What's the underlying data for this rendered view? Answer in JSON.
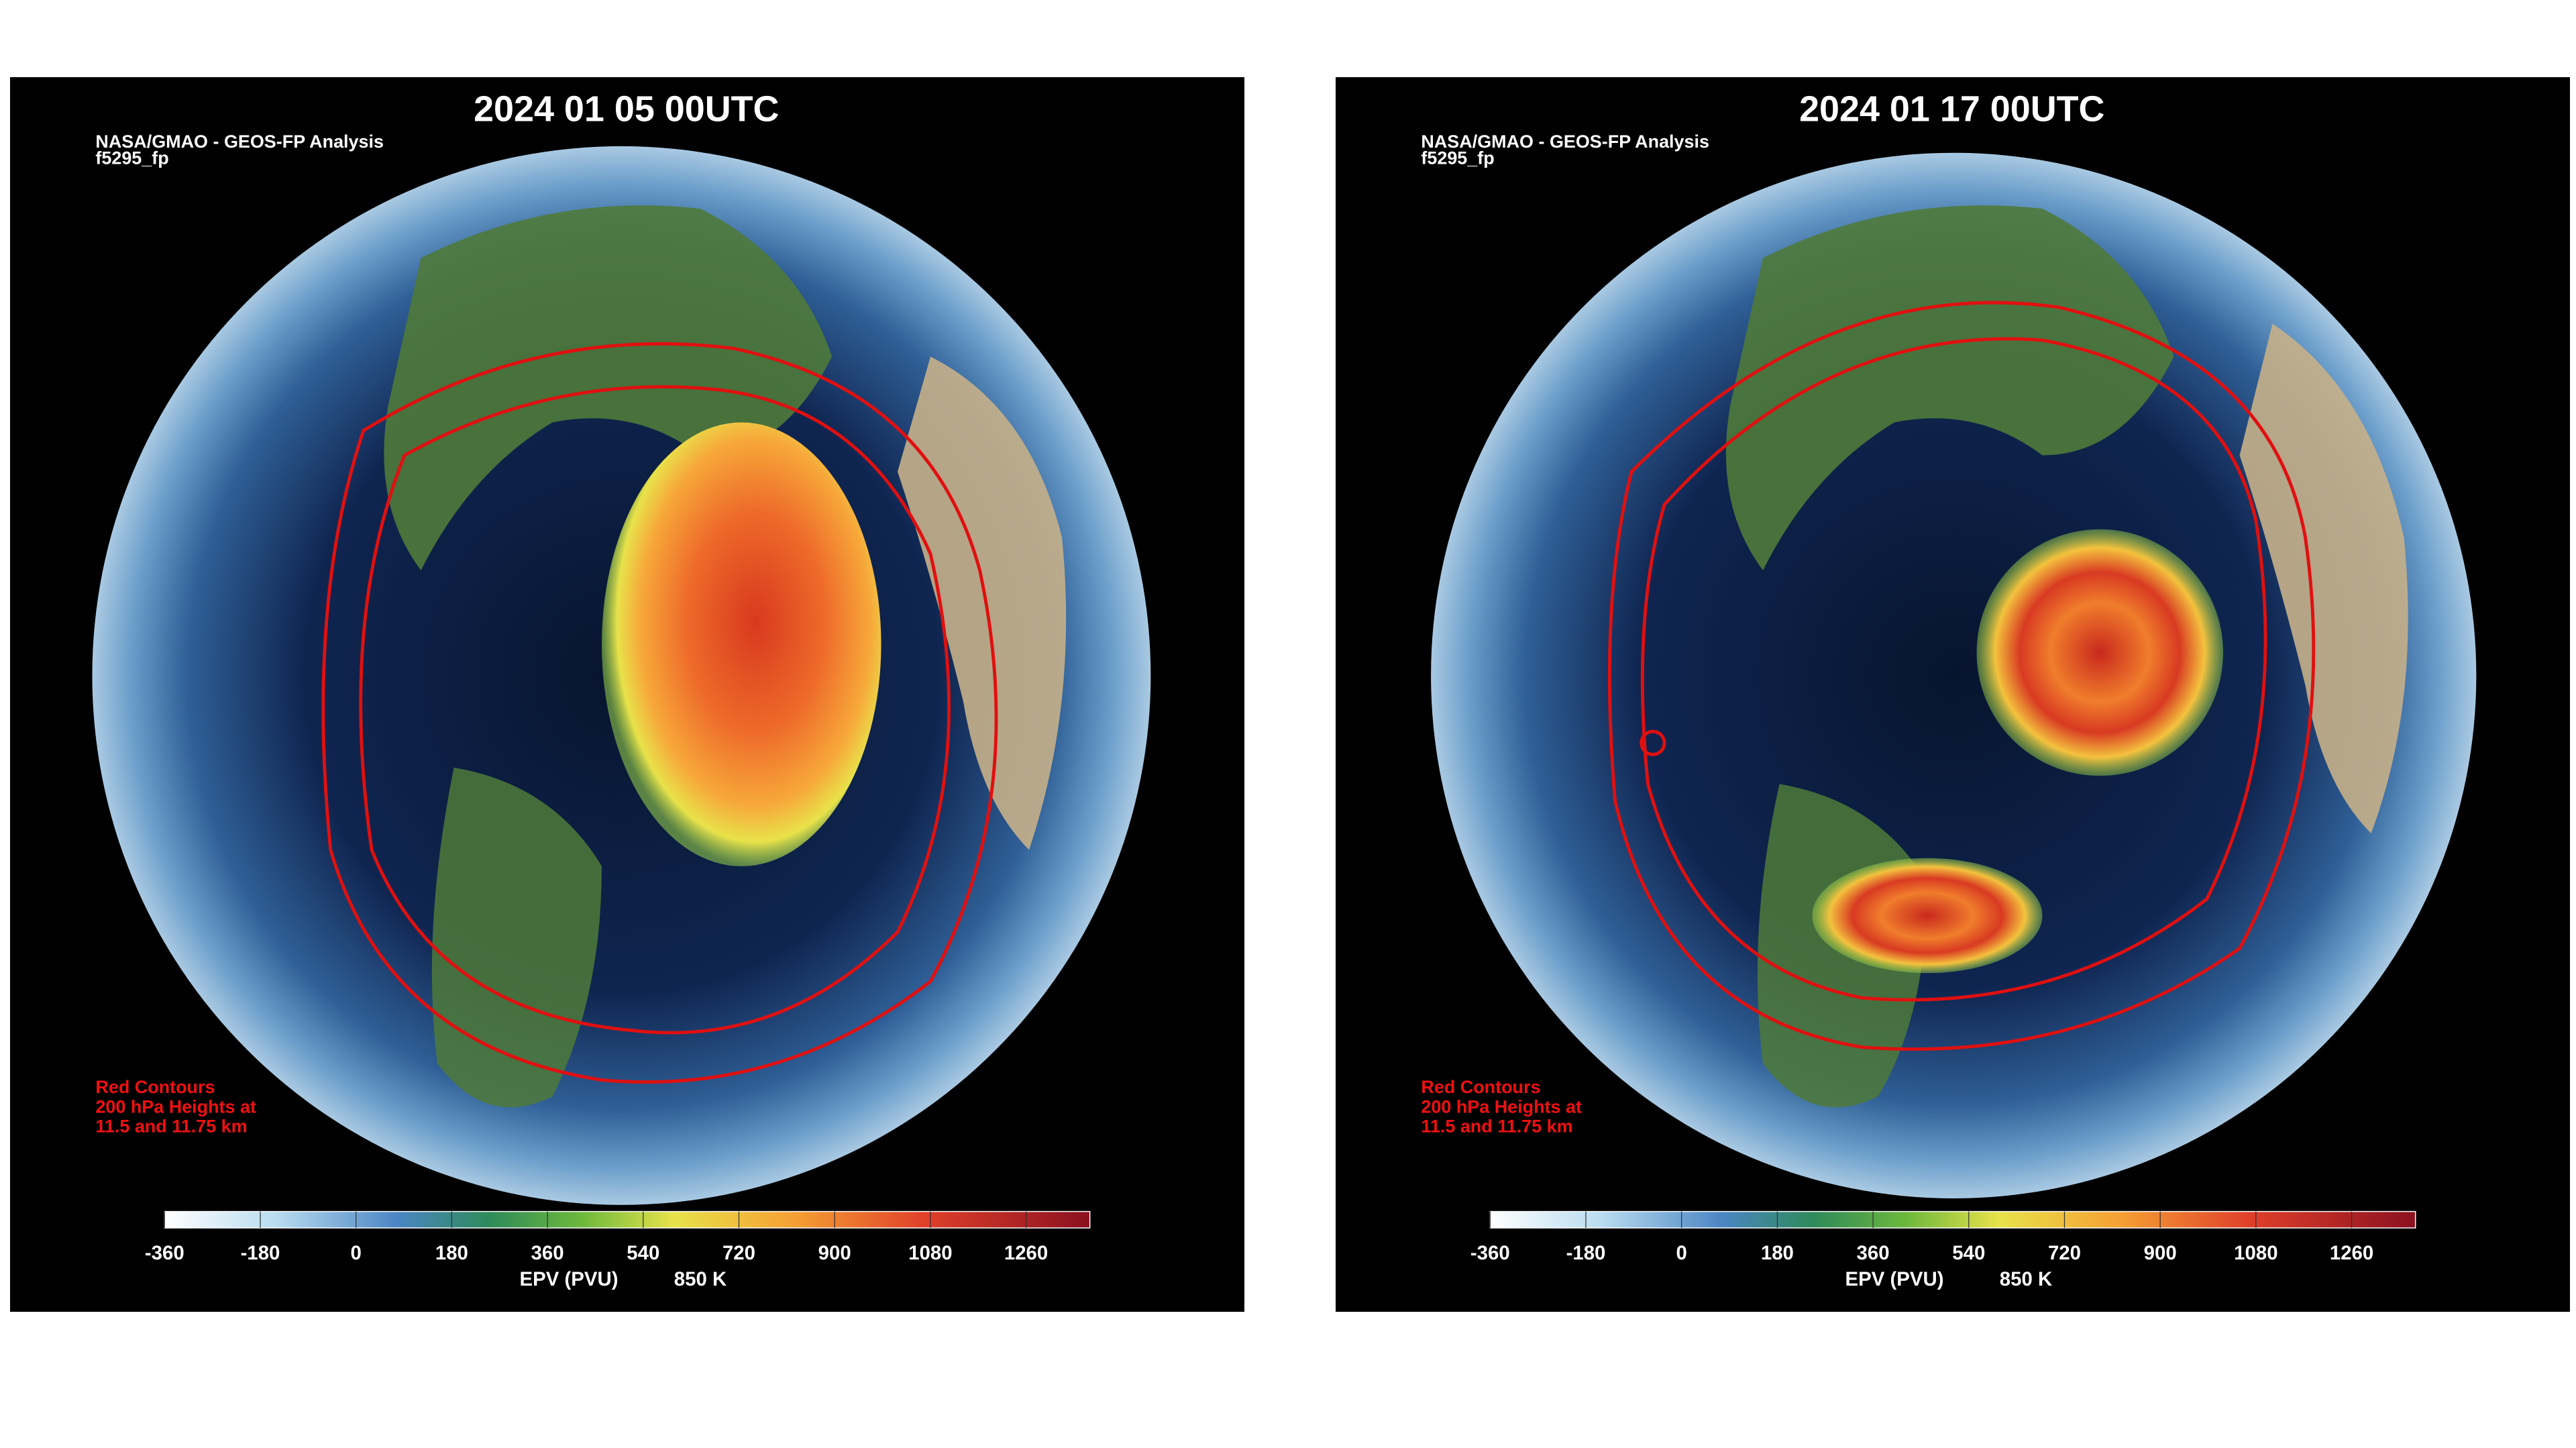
{
  "panels": [
    {
      "title": "2024 01 05 00UTC",
      "source": [
        "NASA/GMAO - GEOS-FP Analysis",
        "f5295_fp"
      ],
      "note": [
        "Red Contours",
        "200 hPa Heights at",
        "11.5 and 11.75 km"
      ],
      "colorbar": {
        "range": [
          -360,
          1380
        ],
        "ticks": [
          -360,
          -180,
          0,
          180,
          360,
          540,
          720,
          900,
          1080,
          1260
        ],
        "label": "EPV (PVU)",
        "level": "850 K"
      }
    },
    {
      "title": "2024 01 17 00UTC",
      "source": [
        "NASA/GMAO - GEOS-FP Analysis",
        "f5295_fp"
      ],
      "note": [
        "Red Contours",
        "200 hPa Heights at",
        "11.5 and 11.75 km"
      ],
      "colorbar": {
        "range": [
          -360,
          1380
        ],
        "ticks": [
          -360,
          -180,
          0,
          180,
          360,
          540,
          720,
          900,
          1080,
          1260
        ],
        "label": "EPV (PVU)",
        "level": "850 K"
      }
    }
  ]
}
